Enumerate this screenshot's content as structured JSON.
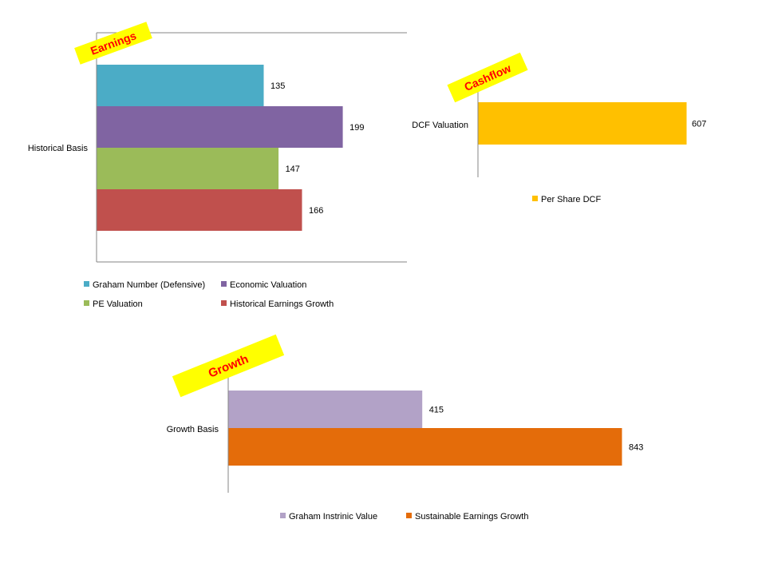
{
  "chart_data": [
    {
      "type": "bar",
      "orientation": "horizontal",
      "tag": "Earnings",
      "categories": [
        "Historical Basis"
      ],
      "series": [
        {
          "name": "Graham Number (Defensive)",
          "values": [
            135
          ],
          "color": "#4bacc6"
        },
        {
          "name": "Economic Valuation",
          "values": [
            199
          ],
          "color": "#8064a2"
        },
        {
          "name": "PE Valuation",
          "values": [
            147
          ],
          "color": "#9bbb59"
        },
        {
          "name": "Historical Earnings Growth",
          "values": [
            166
          ],
          "color": "#c0504d"
        }
      ],
      "xlim": [
        0,
        250
      ],
      "legend": "bottom",
      "data_labels": true
    },
    {
      "type": "bar",
      "orientation": "horizontal",
      "tag": "Cashflow",
      "categories": [
        "DCF Valuation"
      ],
      "series": [
        {
          "name": "Per Share DCF",
          "values": [
            607
          ],
          "color": "#ffc000"
        }
      ],
      "xlim": [
        0,
        700
      ],
      "legend": "bottom",
      "data_labels": true
    },
    {
      "type": "bar",
      "orientation": "horizontal",
      "tag": "Growth",
      "categories": [
        "Growth Basis"
      ],
      "series": [
        {
          "name": "Graham Instrinic Value",
          "values": [
            415
          ],
          "color": "#b2a2c7"
        },
        {
          "name": "Sustainable Earnings Growth",
          "values": [
            843
          ],
          "color": "#e46c0a"
        }
      ],
      "xlim": [
        0,
        843
      ],
      "legend": "bottom",
      "data_labels": true
    }
  ],
  "colors": {
    "tag_bg": "#ffff00",
    "tag_text": "#ff0000",
    "axis": "#868686"
  }
}
